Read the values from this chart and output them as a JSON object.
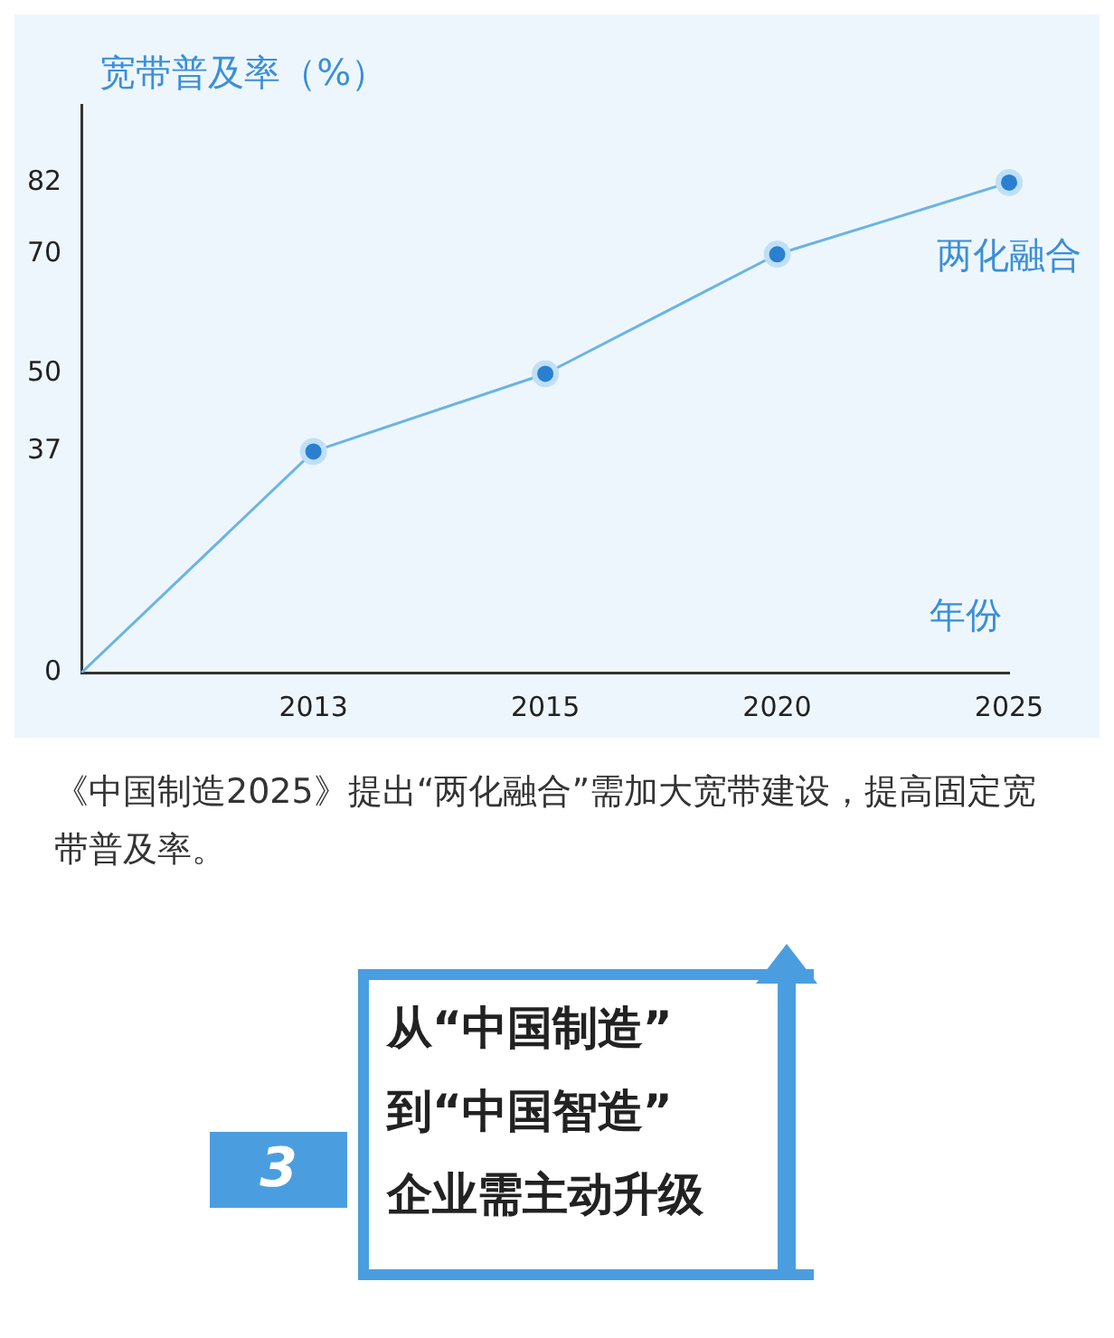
{
  "chart_data": {
    "type": "line",
    "ylabel": "宽带普及率（%）",
    "xlabel": "年份",
    "categories": [
      null,
      "2013",
      "2015",
      "2020",
      "2025"
    ],
    "series": [
      {
        "name": "两化融合",
        "color": "#6ab4e4",
        "values": [
          0,
          37,
          50,
          70,
          82
        ]
      }
    ],
    "ylim": [
      0,
      95
    ],
    "yticks": [
      0,
      37,
      50,
      70,
      82
    ],
    "grid": false,
    "legend": false,
    "marker": "circle",
    "line_style": "solid",
    "annotations": [
      "《中国制造2025》提出“两化融合”需加大宽带建设，提高固定宽带普及率。",
      "3",
      "从“中国制造”",
      "到“中国智造”",
      "企业需主动升级"
    ]
  }
}
